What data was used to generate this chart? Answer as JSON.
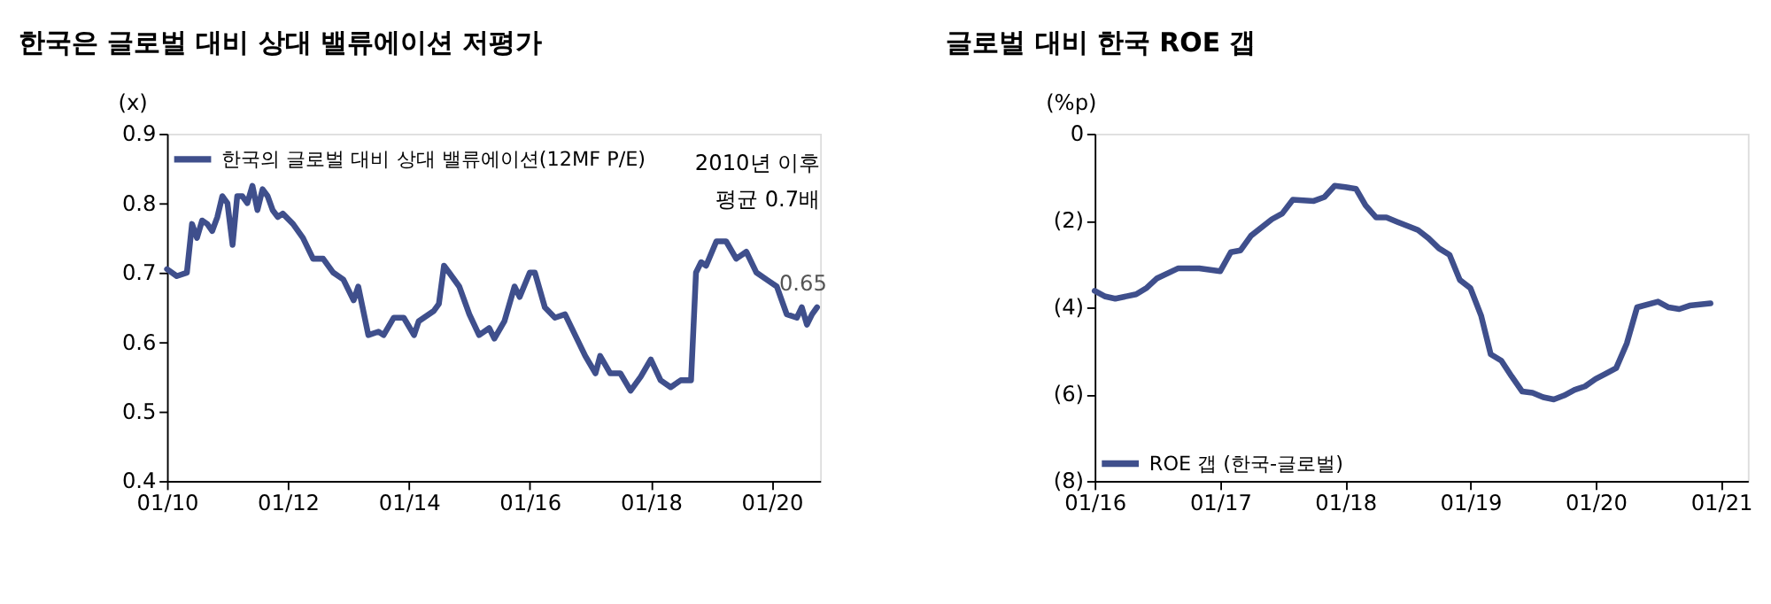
{
  "chart_data": [
    {
      "type": "line",
      "title": "한국은 글로벌 대비 상대 밸류에이션 저평가",
      "ylabel": "(x)",
      "legend": "top left",
      "grid": false,
      "xlim": [
        "2010-01",
        "2020-10-20"
      ],
      "xticks": [
        {
          "value": "2010-01",
          "label": "01/10"
        },
        {
          "value": "2012-01",
          "label": "01/12"
        },
        {
          "value": "2014-01",
          "label": "01/14"
        },
        {
          "value": "2016-01",
          "label": "01/16"
        },
        {
          "value": "2018-01",
          "label": "01/18"
        },
        {
          "value": "2020-01",
          "label": "01/20"
        }
      ],
      "ylim": [
        0.4,
        0.9
      ],
      "yticks": [
        0.4,
        0.5,
        0.6,
        0.7,
        0.8,
        0.9
      ],
      "annotations": [
        "2010년 이후\n평균 0.7배",
        {
          "text": "0.65",
          "x": "2020-10",
          "y": 0.65
        }
      ],
      "series": [
        {
          "name": "한국의 글로벌 대비 상대 밸류에이션(12MF  P/E)",
          "color": "#3f4f8c",
          "x": [
            "2010-01",
            "2010-03",
            "2010-05",
            "2010-06",
            "2010-07",
            "2010-08",
            "2010-09",
            "2010-10",
            "2010-11",
            "2010-12",
            "2011-01",
            "2011-02",
            "2011-03",
            "2011-04",
            "2011-05",
            "2011-06",
            "2011-07",
            "2011-08",
            "2011-09",
            "2011-10",
            "2011-11",
            "2011-12",
            "2012-02",
            "2012-04",
            "2012-06",
            "2012-08",
            "2012-10",
            "2012-12",
            "2013-02",
            "2013-03",
            "2013-05",
            "2013-07",
            "2013-08",
            "2013-10",
            "2013-12",
            "2014-02",
            "2014-03",
            "2014-06",
            "2014-07",
            "2014-08",
            "2014-09",
            "2014-11",
            "2015-01",
            "2015-03",
            "2015-05",
            "2015-06",
            "2015-08",
            "2015-10",
            "2015-11",
            "2016-01",
            "2016-02",
            "2016-04",
            "2016-06",
            "2016-08",
            "2016-10",
            "2016-12",
            "2017-02",
            "2017-03",
            "2017-05",
            "2017-07",
            "2017-09",
            "2017-11",
            "2018-01",
            "2018-03",
            "2018-05",
            "2018-07",
            "2018-09",
            "2018-10",
            "2018-11",
            "2018-12",
            "2019-02",
            "2019-04",
            "2019-06",
            "2019-08",
            "2019-10",
            "2019-12",
            "2020-02",
            "2020-04",
            "2020-06",
            "2020-07",
            "2020-08",
            "2020-09",
            "2020-10"
          ],
          "values": [
            0.705,
            0.695,
            0.7,
            0.77,
            0.75,
            0.775,
            0.77,
            0.76,
            0.78,
            0.81,
            0.8,
            0.74,
            0.81,
            0.81,
            0.8,
            0.825,
            0.79,
            0.82,
            0.81,
            0.79,
            0.78,
            0.785,
            0.77,
            0.75,
            0.72,
            0.72,
            0.7,
            0.69,
            0.66,
            0.68,
            0.61,
            0.615,
            0.61,
            0.635,
            0.635,
            0.61,
            0.63,
            0.645,
            0.655,
            0.71,
            0.7,
            0.68,
            0.64,
            0.61,
            0.62,
            0.605,
            0.63,
            0.68,
            0.665,
            0.7,
            0.7,
            0.65,
            0.635,
            0.64,
            0.61,
            0.58,
            0.555,
            0.58,
            0.555,
            0.555,
            0.53,
            0.55,
            0.575,
            0.545,
            0.535,
            0.545,
            0.545,
            0.7,
            0.715,
            0.71,
            0.745,
            0.745,
            0.72,
            0.73,
            0.7,
            0.69,
            0.68,
            0.64,
            0.635,
            0.65,
            0.625,
            0.64,
            0.65
          ]
        }
      ]
    },
    {
      "type": "line",
      "title": "글로벌 대비 한국 ROE 갭",
      "ylabel": "(%p)",
      "legend": "bottom left",
      "grid": false,
      "xlim": [
        "2016-01",
        "2021-03-20"
      ],
      "xticks": [
        {
          "value": "2016-01",
          "label": "01/16"
        },
        {
          "value": "2017-01",
          "label": "01/17"
        },
        {
          "value": "2018-01",
          "label": "01/18"
        },
        {
          "value": "2019-01",
          "label": "01/19"
        },
        {
          "value": "2020-01",
          "label": "01/20"
        },
        {
          "value": "2021-01",
          "label": "01/21"
        }
      ],
      "ylim": [
        -8,
        0
      ],
      "yticks": [
        {
          "value": -8,
          "label": "(8)"
        },
        {
          "value": -6,
          "label": "(6)"
        },
        {
          "value": -4,
          "label": "(4)"
        },
        {
          "value": -2,
          "label": "(2)"
        },
        0
      ],
      "series": [
        {
          "name": "ROE 갭 (한국-글로벌)",
          "color": "#3f4f8c",
          "x": [
            "2016-01",
            "2016-02",
            "2016-03",
            "2016-05",
            "2016-06",
            "2016-07",
            "2016-09",
            "2016-11",
            "2017-01",
            "2017-02",
            "2017-03",
            "2017-04",
            "2017-06",
            "2017-07",
            "2017-08",
            "2017-10",
            "2017-11",
            "2017-12",
            "2018-01",
            "2018-02",
            "2018-03",
            "2018-04",
            "2018-05",
            "2018-06",
            "2018-08",
            "2018-09",
            "2018-10",
            "2018-11",
            "2018-12",
            "2019-01",
            "2019-02",
            "2019-03",
            "2019-04",
            "2019-05",
            "2019-06",
            "2019-07",
            "2019-08",
            "2019-09",
            "2019-10",
            "2019-11",
            "2019-12",
            "2020-01",
            "2020-02",
            "2020-03",
            "2020-04",
            "2020-05",
            "2020-07",
            "2020-08",
            "2020-09",
            "2020-10",
            "2020-12"
          ],
          "values": [
            -3.62,
            -3.75,
            -3.8,
            -3.7,
            -3.55,
            -3.33,
            -3.1,
            -3.1,
            -3.17,
            -2.73,
            -2.69,
            -2.35,
            -1.97,
            -1.84,
            -1.52,
            -1.55,
            -1.46,
            -1.2,
            -1.23,
            -1.27,
            -1.65,
            -1.93,
            -1.93,
            -2.03,
            -2.22,
            -2.41,
            -2.64,
            -2.79,
            -3.37,
            -3.56,
            -4.19,
            -5.08,
            -5.23,
            -5.59,
            -5.94,
            -5.97,
            -6.07,
            -6.12,
            -6.03,
            -5.9,
            -5.82,
            -5.65,
            -5.52,
            -5.4,
            -4.83,
            -4.0,
            -3.87,
            -4.0,
            -4.04,
            -3.96,
            -3.91
          ]
        }
      ]
    }
  ]
}
